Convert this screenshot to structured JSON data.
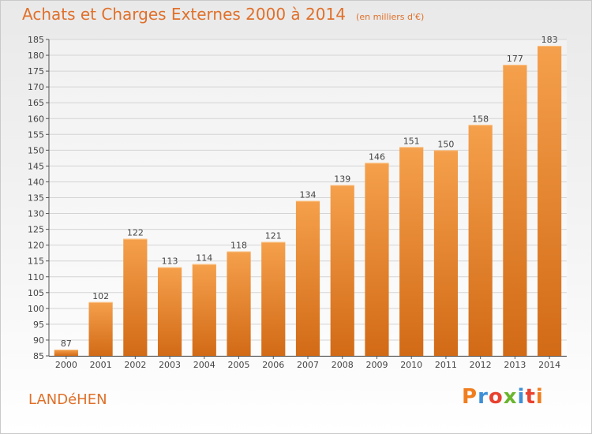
{
  "header": {
    "title": "Achats et Charges Externes 2000 à 2014",
    "subtitle": "(en milliers d'€)"
  },
  "footer": {
    "commune": "LANDéHEN",
    "brand": "Proxiti",
    "brand_colors": [
      "#f07e1e",
      "#3e8fd6",
      "#e8422f",
      "#6ab52e",
      "#3e8fd6",
      "#e8422f",
      "#f07e1e"
    ]
  },
  "chart_data": {
    "type": "bar",
    "categories": [
      "2000",
      "2001",
      "2002",
      "2003",
      "2004",
      "2005",
      "2006",
      "2007",
      "2008",
      "2009",
      "2010",
      "2011",
      "2012",
      "2013",
      "2014"
    ],
    "values": [
      87,
      102,
      122,
      113,
      114,
      118,
      121,
      134,
      139,
      146,
      151,
      150,
      158,
      177,
      183
    ],
    "title": "Achats et Charges Externes 2000 à 2014",
    "subtitle": "(en milliers d'€)",
    "xlabel": "",
    "ylabel": "",
    "ylim": [
      85,
      185
    ],
    "yticks": [
      85,
      90,
      95,
      100,
      105,
      110,
      115,
      120,
      125,
      130,
      135,
      140,
      145,
      150,
      155,
      160,
      165,
      170,
      175,
      180,
      185
    ],
    "grid": true,
    "data_labels": true,
    "bar_color_top": "#f5a04c",
    "bar_color_bottom": "#d26a16",
    "label_color": "#444444"
  }
}
